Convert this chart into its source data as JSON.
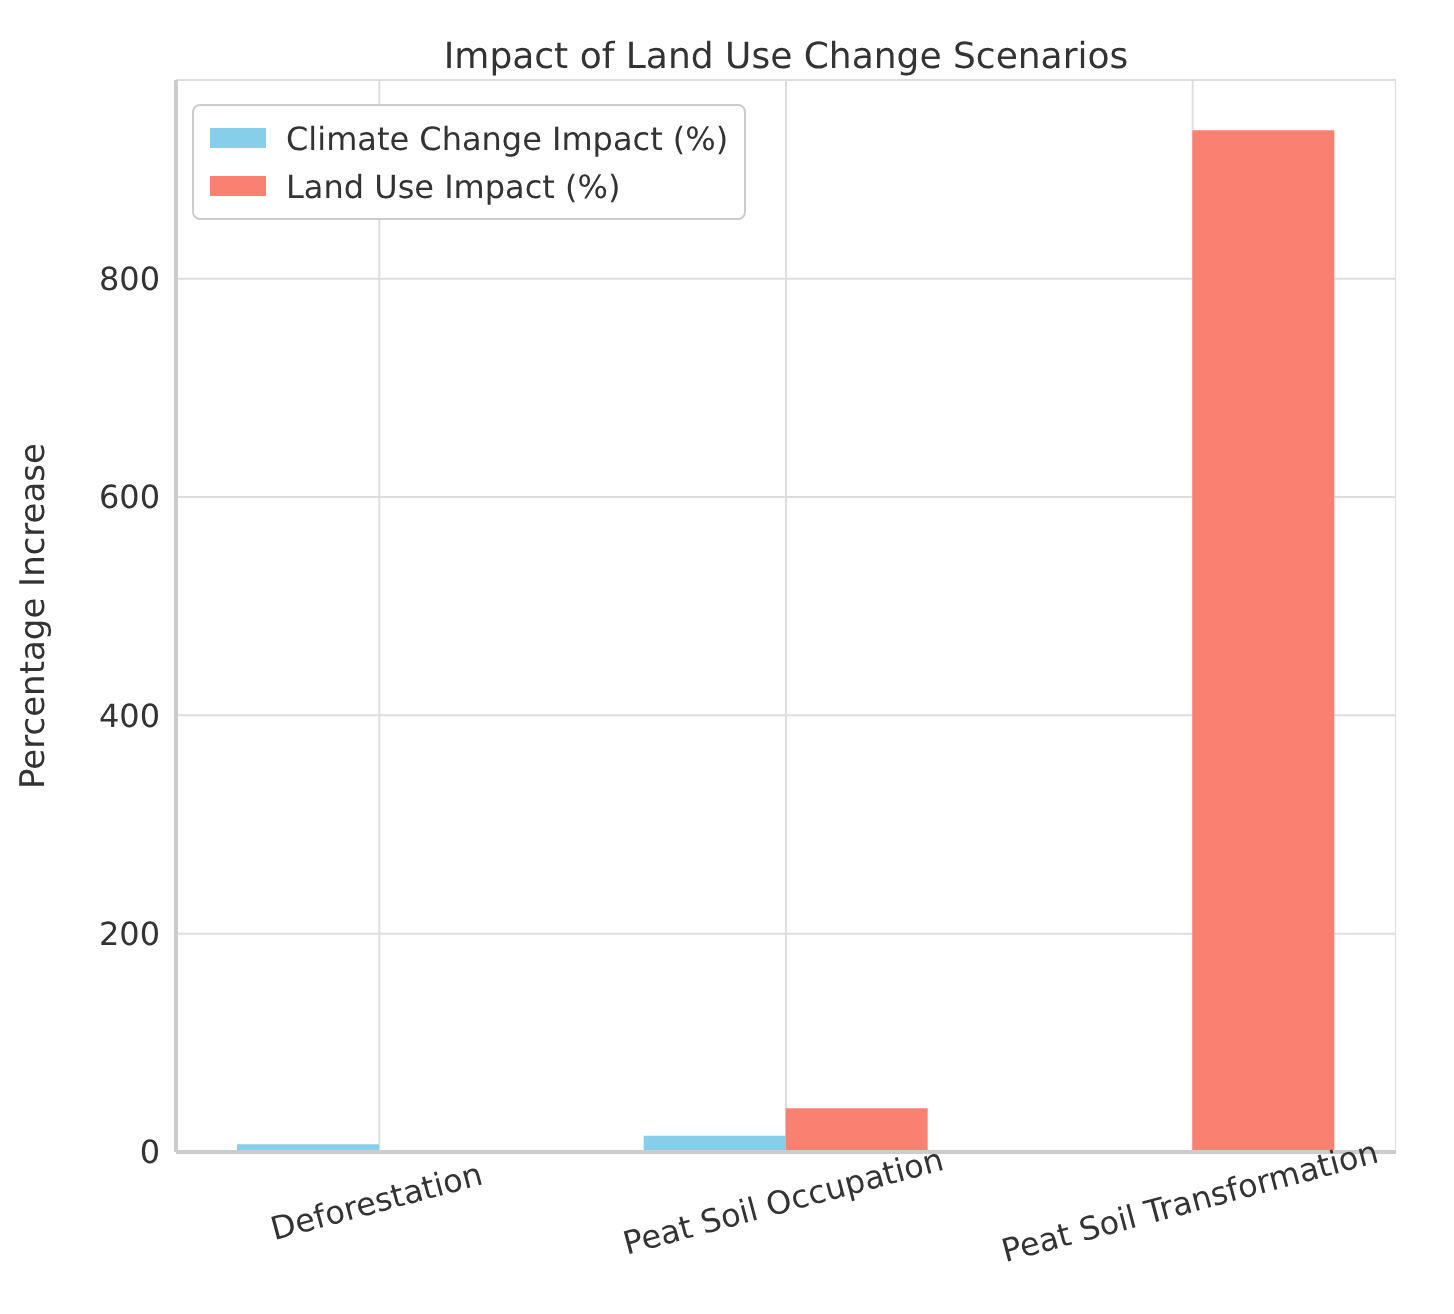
{
  "chart_data": {
    "type": "bar",
    "title": "Impact of Land Use Change Scenarios",
    "ylabel": "Percentage Increase",
    "categories": [
      "Deforestation",
      "Peat Soil Occupation",
      "Peat Soil Transformation"
    ],
    "series": [
      {
        "name": "Climate Change Impact (%)",
        "color": "#87ceeb",
        "values": [
          7,
          15,
          0
        ]
      },
      {
        "name": "Land Use Impact (%)",
        "color": "#fa8072",
        "values": [
          0,
          40,
          936
        ]
      }
    ],
    "ylim": [
      0,
      982
    ],
    "yticks": [
      0,
      200,
      400,
      600,
      800
    ],
    "grid": true,
    "legend": "top left"
  }
}
